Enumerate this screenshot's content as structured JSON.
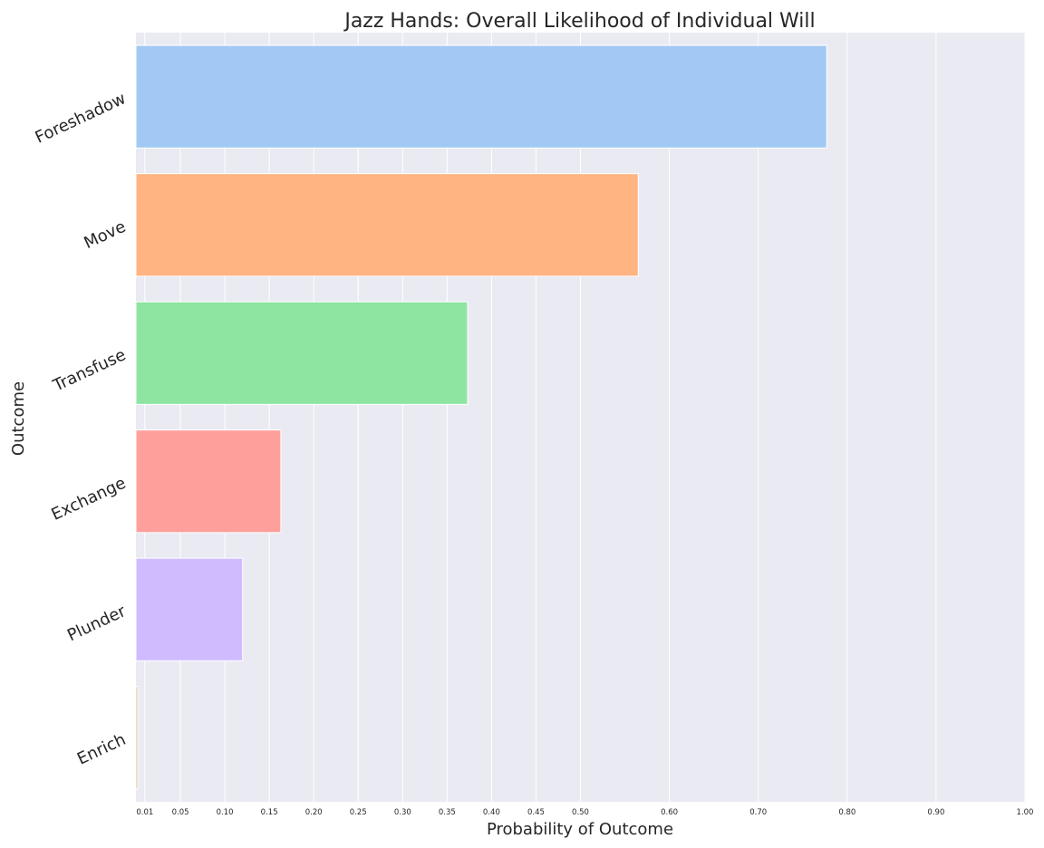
{
  "chart_data": {
    "type": "bar",
    "orientation": "horizontal",
    "title": "Jazz Hands: Overall Likelihood of Individual Will",
    "xlabel": "Probability of Outcome",
    "ylabel": "Outcome",
    "xlim": [
      0.0,
      1.0
    ],
    "xticks": [
      0.01,
      0.05,
      0.1,
      0.15,
      0.2,
      0.25,
      0.3,
      0.35,
      0.4,
      0.45,
      0.5,
      0.6,
      0.7,
      0.8,
      0.9,
      1.0
    ],
    "xtick_labels": [
      "0.01",
      "0.05",
      "0.10",
      "0.15",
      "0.20",
      "0.25",
      "0.30",
      "0.35",
      "0.40",
      "0.45",
      "0.50",
      "0.60",
      "0.70",
      "0.80",
      "0.90",
      "1.00"
    ],
    "categories": [
      "Foreshadow",
      "Move",
      "Transfuse",
      "Exchange",
      "Plunder",
      "Enrich"
    ],
    "values": [
      0.777,
      0.565,
      0.373,
      0.163,
      0.12,
      0.002
    ],
    "colors": [
      "#a1c9f4",
      "#ffb482",
      "#8de5a1",
      "#ff9f9b",
      "#d0bbff",
      "#debb9b"
    ],
    "grid": true,
    "background": "#eaeaf2",
    "grid_color": "#ffffff"
  }
}
